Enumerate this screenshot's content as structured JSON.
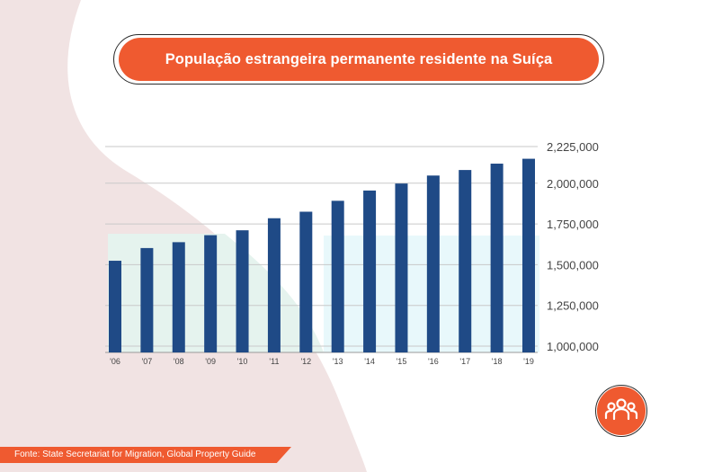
{
  "title": "População estrangeira permanente residente na Suíça",
  "source": "Fonte: State Secretariat for Migration, Global Property Guide",
  "icon": "people-group-icon",
  "colors": {
    "accent": "#ef5a30",
    "bar": "#1f4a86",
    "grid": "#c9c9c9",
    "axis_text": "#444444",
    "bg_blob": "#f1e3e3",
    "bg_mint": "#e5f3ee",
    "bg_cyan": "#e8f8fb"
  },
  "chart_data": {
    "type": "bar",
    "categories": [
      "'06",
      "'07",
      "'08",
      "'09",
      "'10",
      "'11",
      "'12",
      "'13",
      "'14",
      "'15",
      "'16",
      "'17",
      "'18",
      "'19"
    ],
    "values": [
      1524000,
      1602000,
      1638000,
      1681000,
      1711000,
      1785000,
      1825000,
      1892000,
      1955000,
      1998000,
      2047000,
      2081000,
      2120000,
      2150000
    ],
    "yticks": [
      "1,000,000",
      "1,250,000",
      "1,500,000",
      "1,750,000",
      "2,000,000",
      "2,225,000"
    ],
    "ytick_values": [
      1000000,
      1250000,
      1500000,
      1750000,
      2000000,
      2225000
    ],
    "ylim": [
      1000000,
      2225000
    ],
    "xlabel": "",
    "ylabel": "",
    "grid": true,
    "legend": "none"
  }
}
